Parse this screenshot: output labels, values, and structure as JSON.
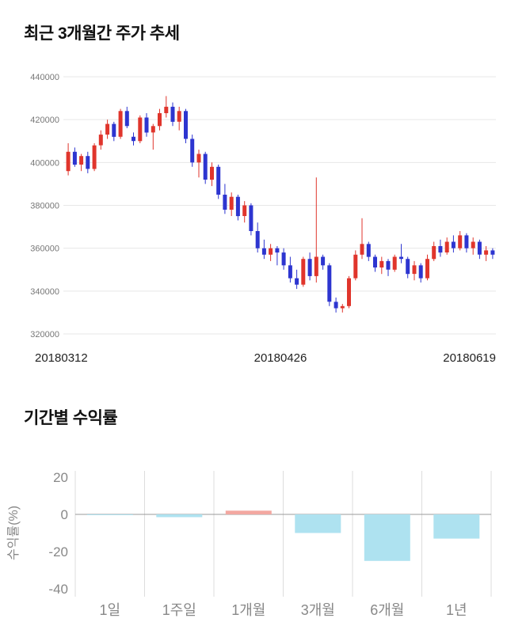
{
  "page": {
    "title1": "최근 3개월간 주가 추세",
    "title2": "기간별 수익률"
  },
  "chart_data": [
    {
      "type": "candlestick",
      "title": "최근 3개월간 주가 추세",
      "ylim": [
        320000,
        440000
      ],
      "yticks": [
        440000,
        420000,
        400000,
        380000,
        360000,
        340000,
        320000
      ],
      "xticks": [
        "20180312",
        "20180426",
        "20180619"
      ],
      "up_color": "#e0352c",
      "down_color": "#2d35d0",
      "grid_color": "#e7e7e7",
      "candles": [
        [
          396000,
          409000,
          394000,
          405000
        ],
        [
          405000,
          407000,
          398000,
          399000
        ],
        [
          399000,
          404000,
          396000,
          403000
        ],
        [
          403000,
          405000,
          395000,
          397000
        ],
        [
          397000,
          409000,
          396000,
          408000
        ],
        [
          408000,
          415000,
          406000,
          413000
        ],
        [
          413000,
          420000,
          411000,
          418000
        ],
        [
          418000,
          419000,
          410000,
          412000
        ],
        [
          412000,
          425000,
          411000,
          424000
        ],
        [
          424000,
          426000,
          416000,
          417000
        ],
        [
          412000,
          414000,
          408000,
          410000
        ],
        [
          410000,
          422000,
          409000,
          421000
        ],
        [
          421000,
          423000,
          412000,
          414000
        ],
        [
          414000,
          418000,
          406000,
          417000
        ],
        [
          417000,
          425000,
          415000,
          423000
        ],
        [
          423000,
          431000,
          421000,
          426000
        ],
        [
          426000,
          428000,
          417000,
          419000
        ],
        [
          419000,
          426000,
          415000,
          424000
        ],
        [
          424000,
          425000,
          409000,
          411000
        ],
        [
          411000,
          413000,
          398000,
          400000
        ],
        [
          400000,
          406000,
          393000,
          404000
        ],
        [
          404000,
          405000,
          390000,
          392000
        ],
        [
          392000,
          400000,
          389000,
          398000
        ],
        [
          398000,
          399000,
          383000,
          385000
        ],
        [
          385000,
          390000,
          376000,
          378000
        ],
        [
          378000,
          386000,
          375000,
          384000
        ],
        [
          384000,
          385000,
          373000,
          375000
        ],
        [
          375000,
          382000,
          372000,
          380000
        ],
        [
          380000,
          381000,
          366000,
          368000
        ],
        [
          368000,
          372000,
          358000,
          360000
        ],
        [
          360000,
          364000,
          355000,
          357000
        ],
        [
          357000,
          362000,
          354000,
          360000
        ],
        [
          360000,
          361000,
          352000,
          358000
        ],
        [
          358000,
          360000,
          350000,
          352000
        ],
        [
          352000,
          356000,
          344000,
          346000
        ],
        [
          346000,
          350000,
          341000,
          343000
        ],
        [
          343000,
          356000,
          342000,
          355000
        ],
        [
          355000,
          358000,
          345000,
          347000
        ],
        [
          347000,
          393000,
          344000,
          356000
        ],
        [
          356000,
          357000,
          350000,
          352000
        ],
        [
          352000,
          353000,
          333000,
          335000
        ],
        [
          335000,
          337000,
          330000,
          332000
        ],
        [
          332000,
          334000,
          330000,
          333000
        ],
        [
          333000,
          347000,
          332000,
          346000
        ],
        [
          346000,
          359000,
          345000,
          357000
        ],
        [
          357000,
          374000,
          355000,
          362000
        ],
        [
          362000,
          363000,
          354000,
          356000
        ],
        [
          356000,
          357000,
          349000,
          351000
        ],
        [
          351000,
          356000,
          348000,
          354000
        ],
        [
          354000,
          355000,
          347000,
          350000
        ],
        [
          350000,
          357000,
          349000,
          356000
        ],
        [
          356000,
          362000,
          353000,
          355000
        ],
        [
          355000,
          356000,
          346000,
          348000
        ],
        [
          348000,
          354000,
          345000,
          352000
        ],
        [
          352000,
          353000,
          344000,
          346000
        ],
        [
          346000,
          357000,
          345000,
          355000
        ],
        [
          355000,
          363000,
          354000,
          361000
        ],
        [
          361000,
          364000,
          356000,
          358000
        ],
        [
          358000,
          365000,
          357000,
          363000
        ],
        [
          363000,
          366000,
          358000,
          360000
        ],
        [
          360000,
          368000,
          359000,
          366000
        ],
        [
          366000,
          367000,
          358000,
          360000
        ],
        [
          360000,
          365000,
          357000,
          363000
        ],
        [
          363000,
          364000,
          355000,
          357000
        ],
        [
          357000,
          361000,
          354000,
          359000
        ],
        [
          359000,
          360000,
          355000,
          357000
        ]
      ]
    },
    {
      "type": "bar",
      "title": "기간별 수익률",
      "ylabel": "수익률(%)",
      "ylim": [
        -40,
        20
      ],
      "yticks": [
        20,
        0,
        -20,
        -40
      ],
      "categories": [
        "1일",
        "1주일",
        "1개월",
        "3개월",
        "6개월",
        "1년"
      ],
      "values": [
        -0.4,
        -1.5,
        2,
        -10,
        -25,
        -13
      ],
      "positive_color": "#f3a8a1",
      "negative_color": "#aee2f0",
      "grid_color": "#dddddd",
      "zero_line_color": "#999999"
    }
  ]
}
